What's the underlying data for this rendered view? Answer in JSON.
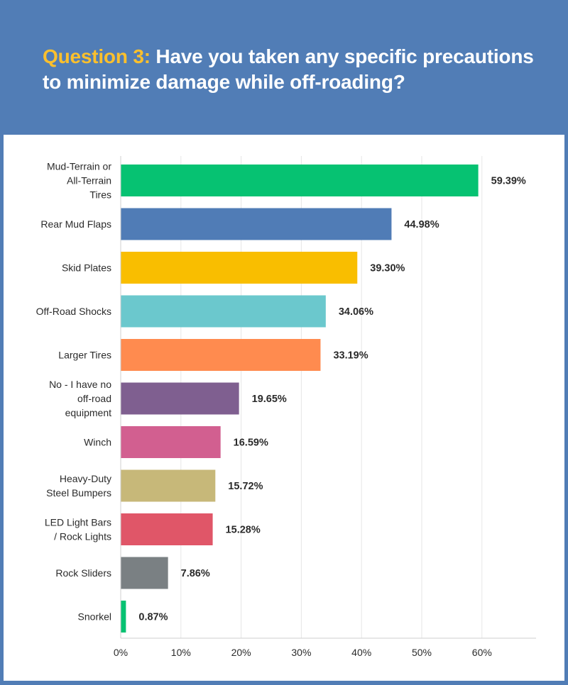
{
  "header": {
    "question_prefix": "Question 3:",
    "question_text": "Have you taken any specific precautions to minimize damage while off-roading?"
  },
  "colors": {
    "background": "#517db6",
    "title_accent": "#fbc02d",
    "panel": "#ffffff",
    "grid": "#e6e6e6"
  },
  "chart_data": {
    "type": "bar",
    "orientation": "horizontal",
    "title": "Have you taken any specific precautions to minimize damage while off-roading?",
    "xlabel": "",
    "ylabel": "",
    "xlim": [
      0,
      69
    ],
    "x_ticks": [
      0,
      10,
      20,
      30,
      40,
      50,
      60
    ],
    "x_tick_labels": [
      "0%",
      "10%",
      "20%",
      "30%",
      "40%",
      "50%",
      "60%"
    ],
    "grid": true,
    "categories": [
      [
        "Mud-Terrain or",
        "All-Terrain",
        "Tires"
      ],
      [
        "Rear Mud Flaps"
      ],
      [
        "Skid Plates"
      ],
      [
        "Off-Road Shocks"
      ],
      [
        "Larger Tires"
      ],
      [
        "No - I have no",
        "off-road",
        "equipment"
      ],
      [
        "Winch"
      ],
      [
        "Heavy-Duty",
        "Steel Bumpers"
      ],
      [
        "LED Light Bars",
        "/ Rock Lights"
      ],
      [
        "Rock Sliders"
      ],
      [
        "Snorkel"
      ]
    ],
    "values": [
      59.39,
      44.98,
      39.3,
      34.06,
      33.19,
      19.65,
      16.59,
      15.72,
      15.28,
      7.86,
      0.87
    ],
    "value_labels": [
      "59.39%",
      "44.98%",
      "39.30%",
      "34.06%",
      "33.19%",
      "19.65%",
      "16.59%",
      "15.72%",
      "15.28%",
      "7.86%",
      "0.87%"
    ],
    "bar_colors": [
      "#06c272",
      "#507cb6",
      "#f9be00",
      "#6bc8cd",
      "#ff8b4f",
      "#7f5f90",
      "#d25f90",
      "#c7b879",
      "#e05668",
      "#7a8083",
      "#06c272"
    ]
  }
}
